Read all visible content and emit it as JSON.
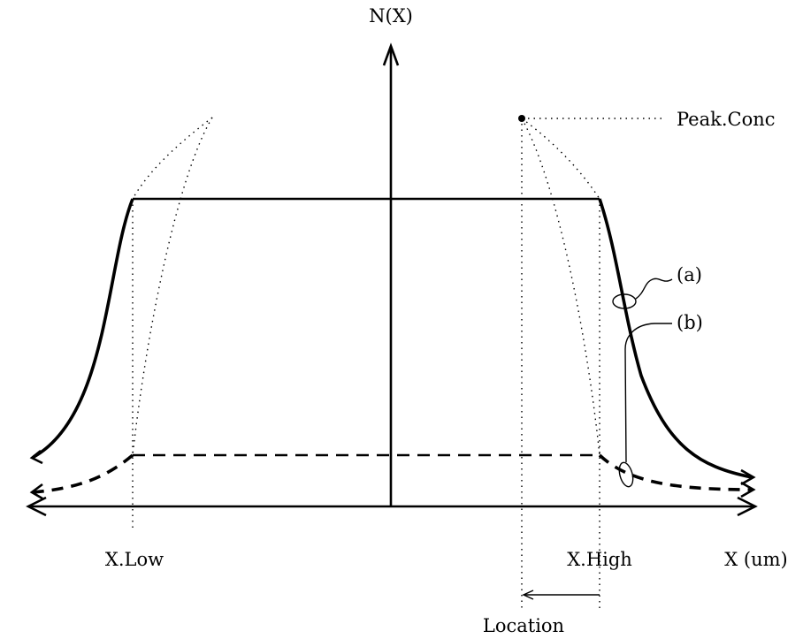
{
  "labels": {
    "y_axis": "N(X)",
    "peak": "Peak.Conc",
    "curve_a": "(a)",
    "curve_b": "(b)",
    "x_low": "X.Low",
    "x_high": "X.High",
    "x_axis": "X (um)",
    "location": "Location"
  }
}
